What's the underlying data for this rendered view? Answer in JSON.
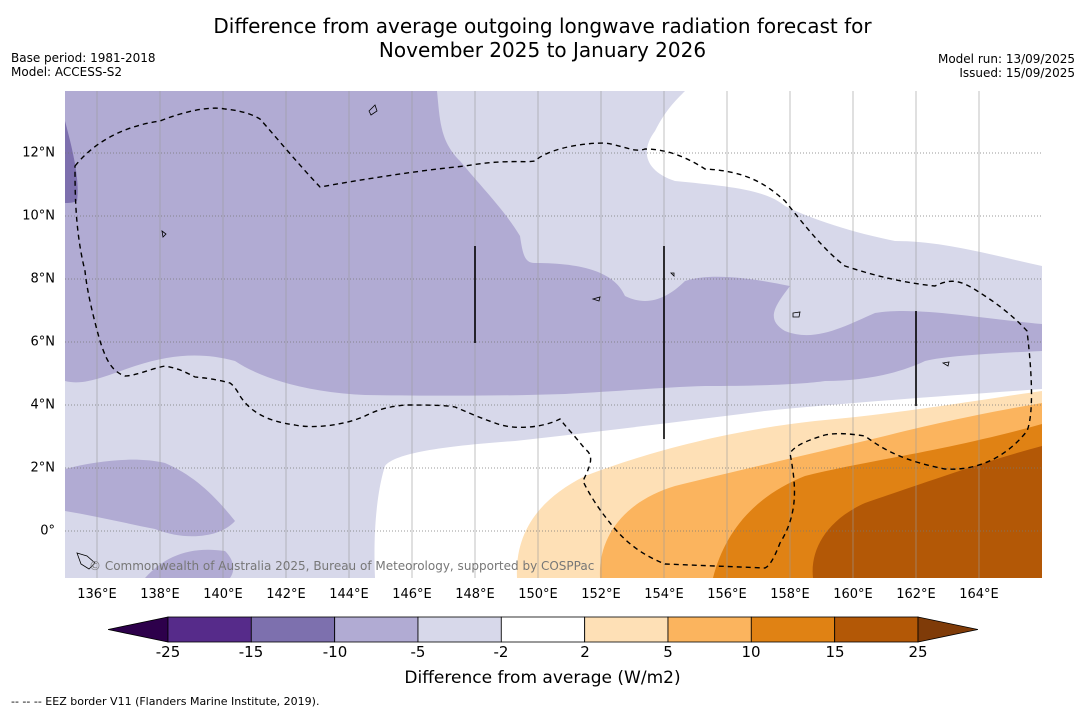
{
  "title_line1": "Difference from average outgoing longwave radiation forecast for",
  "title_line2": "November 2025 to January 2026",
  "base_period": "Base period: 1981-2018",
  "model": "Model: ACCESS-S2",
  "model_run": "Model run: 13/09/2025",
  "issued": "Issued: 15/09/2025",
  "copyright": "© Commonwealth of Australia 2025, Bureau of Meteorology, supported by COSPPac",
  "lat_labels": [
    "12°N",
    "10°N",
    "8°N",
    "6°N",
    "4°N",
    "2°N",
    "0°"
  ],
  "lon_labels": [
    "136°E",
    "138°E",
    "140°E",
    "142°E",
    "144°E",
    "146°E",
    "148°E",
    "150°E",
    "152°E",
    "154°E",
    "156°E",
    "158°E",
    "160°E",
    "162°E",
    "164°E"
  ],
  "colorbar": {
    "label": "Difference from average (W/m2)",
    "ticks": [
      "-25",
      "-15",
      "-10",
      "-5",
      "-2",
      "2",
      "5",
      "10",
      "15",
      "25"
    ],
    "colors": [
      "#562b8a",
      "#7d70ae",
      "#b1abd3",
      "#d7d8ea",
      "#ffffff",
      "#fee0b6",
      "#fbb45e",
      "#e08214",
      "#b35806"
    ],
    "extend_low": "#2d004b",
    "extend_high": "#7f3b08"
  },
  "footnote": "--  --  -- EEZ border V11 (Flanders Marine Institute, 2019)."
}
